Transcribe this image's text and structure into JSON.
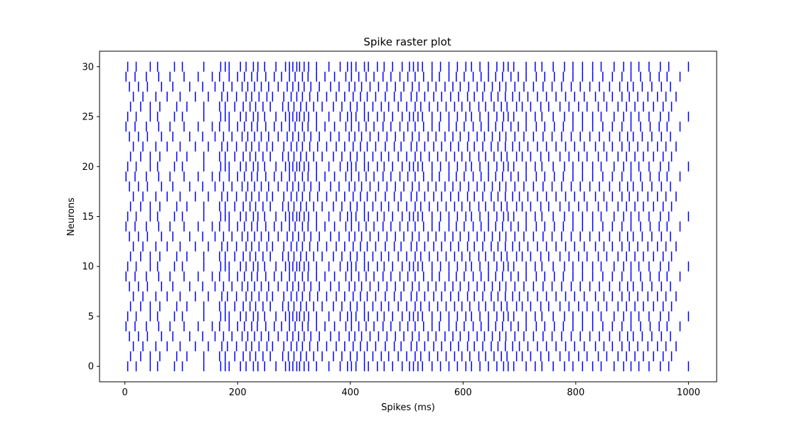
{
  "chart_data": {
    "type": "raster",
    "title": "Spike raster plot",
    "xlabel": "Spikes (ms)",
    "ylabel": "Neurons",
    "xlim": [
      -45,
      1050
    ],
    "ylim": [
      -1.55,
      31.55
    ],
    "xticks": [
      0,
      200,
      400,
      600,
      800,
      1000
    ],
    "yticks": [
      0,
      5,
      10,
      15,
      20,
      25,
      30
    ],
    "color": "#0000ff",
    "grid": false,
    "neurons": 31,
    "pattern_period": 5,
    "note_pattern": "spike trains repeat every 5 neurons; each row lists spike times (ms) for neurons with index mod 5 equal to the row index",
    "spike_rows": [
      [
        5,
        20,
        45,
        58,
        88,
        102,
        140,
        170,
        178,
        185,
        205,
        215,
        228,
        236,
        248,
        268,
        285,
        292,
        298,
        305,
        310,
        318,
        326,
        340,
        362,
        382,
        395,
        402,
        410,
        425,
        432,
        448,
        460,
        475,
        492,
        505,
        512,
        520,
        528,
        545,
        560,
        575,
        590,
        605,
        615,
        630,
        645,
        660,
        672,
        680,
        690,
        712,
        728,
        740,
        760,
        780,
        795,
        812,
        830,
        845,
        868,
        885,
        898,
        912,
        930,
        950,
        965,
        1000
      ],
      [
        10,
        28,
        45,
        62,
        92,
        110,
        140,
        168,
        178,
        195,
        210,
        222,
        232,
        245,
        258,
        280,
        290,
        300,
        312,
        322,
        335,
        350,
        370,
        385,
        400,
        412,
        425,
        440,
        455,
        468,
        485,
        500,
        515,
        525,
        540,
        555,
        570,
        585,
        598,
        612,
        628,
        640,
        655,
        668,
        678,
        695,
        705,
        720,
        738,
        752,
        772,
        788,
        805,
        820,
        840,
        855,
        875,
        890,
        905,
        920,
        938,
        955,
        970
      ],
      [
        15,
        32,
        55,
        75,
        98,
        125,
        148,
        172,
        182,
        198,
        215,
        225,
        238,
        252,
        262,
        282,
        295,
        305,
        315,
        328,
        342,
        358,
        375,
        390,
        405,
        418,
        430,
        445,
        462,
        478,
        490,
        508,
        518,
        532,
        548,
        562,
        578,
        592,
        608,
        620,
        635,
        650,
        662,
        675,
        688,
        700,
        715,
        732,
        748,
        765,
        782,
        798,
        815,
        835,
        850,
        865,
        882,
        895,
        910,
        928,
        945,
        960,
        978
      ],
      [
        8,
        24,
        40,
        65,
        85,
        115,
        138,
        160,
        175,
        190,
        208,
        218,
        230,
        242,
        255,
        272,
        288,
        298,
        308,
        318,
        330,
        345,
        365,
        380,
        398,
        408,
        420,
        435,
        450,
        465,
        480,
        495,
        510,
        522,
        538,
        552,
        568,
        582,
        595,
        610,
        625,
        638,
        652,
        665,
        676,
        692,
        708,
        725,
        742,
        758,
        775,
        792,
        808,
        825,
        842,
        860,
        878,
        892,
        902,
        918,
        935,
        952,
        968
      ],
      [
        2,
        18,
        38,
        60,
        80,
        105,
        130,
        155,
        168,
        185,
        200,
        212,
        225,
        235,
        250,
        265,
        278,
        292,
        302,
        315,
        325,
        340,
        355,
        372,
        392,
        402,
        415,
        428,
        442,
        458,
        472,
        488,
        502,
        515,
        530,
        545,
        558,
        575,
        588,
        602,
        618,
        632,
        645,
        658,
        670,
        685,
        698,
        712,
        730,
        745,
        762,
        778,
        795,
        812,
        830,
        848,
        865,
        882,
        898,
        915,
        932,
        948,
        962,
        985
      ]
    ]
  }
}
